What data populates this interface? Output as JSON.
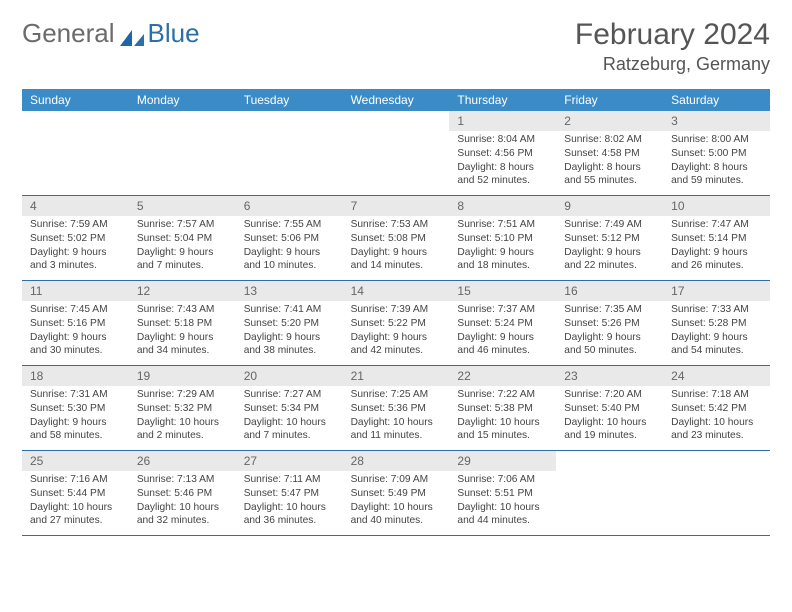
{
  "logo": {
    "part1": "General",
    "part2": "Blue"
  },
  "title": "February 2024",
  "location": "Ratzeburg, Germany",
  "colors": {
    "header_bg": "#3b8bc6",
    "header_text": "#ffffff",
    "daynum_bg": "#e9e9e9",
    "week_border": "#2f6fa8",
    "logo_gray": "#6b6b6b",
    "logo_blue": "#2f6fa8"
  },
  "day_headers": [
    "Sunday",
    "Monday",
    "Tuesday",
    "Wednesday",
    "Thursday",
    "Friday",
    "Saturday"
  ],
  "weeks": [
    [
      {
        "n": "",
        "sr": "",
        "ss": "",
        "dl1": "",
        "dl2": ""
      },
      {
        "n": "",
        "sr": "",
        "ss": "",
        "dl1": "",
        "dl2": ""
      },
      {
        "n": "",
        "sr": "",
        "ss": "",
        "dl1": "",
        "dl2": ""
      },
      {
        "n": "",
        "sr": "",
        "ss": "",
        "dl1": "",
        "dl2": ""
      },
      {
        "n": "1",
        "sr": "Sunrise: 8:04 AM",
        "ss": "Sunset: 4:56 PM",
        "dl1": "Daylight: 8 hours",
        "dl2": "and 52 minutes."
      },
      {
        "n": "2",
        "sr": "Sunrise: 8:02 AM",
        "ss": "Sunset: 4:58 PM",
        "dl1": "Daylight: 8 hours",
        "dl2": "and 55 minutes."
      },
      {
        "n": "3",
        "sr": "Sunrise: 8:00 AM",
        "ss": "Sunset: 5:00 PM",
        "dl1": "Daylight: 8 hours",
        "dl2": "and 59 minutes."
      }
    ],
    [
      {
        "n": "4",
        "sr": "Sunrise: 7:59 AM",
        "ss": "Sunset: 5:02 PM",
        "dl1": "Daylight: 9 hours",
        "dl2": "and 3 minutes."
      },
      {
        "n": "5",
        "sr": "Sunrise: 7:57 AM",
        "ss": "Sunset: 5:04 PM",
        "dl1": "Daylight: 9 hours",
        "dl2": "and 7 minutes."
      },
      {
        "n": "6",
        "sr": "Sunrise: 7:55 AM",
        "ss": "Sunset: 5:06 PM",
        "dl1": "Daylight: 9 hours",
        "dl2": "and 10 minutes."
      },
      {
        "n": "7",
        "sr": "Sunrise: 7:53 AM",
        "ss": "Sunset: 5:08 PM",
        "dl1": "Daylight: 9 hours",
        "dl2": "and 14 minutes."
      },
      {
        "n": "8",
        "sr": "Sunrise: 7:51 AM",
        "ss": "Sunset: 5:10 PM",
        "dl1": "Daylight: 9 hours",
        "dl2": "and 18 minutes."
      },
      {
        "n": "9",
        "sr": "Sunrise: 7:49 AM",
        "ss": "Sunset: 5:12 PM",
        "dl1": "Daylight: 9 hours",
        "dl2": "and 22 minutes."
      },
      {
        "n": "10",
        "sr": "Sunrise: 7:47 AM",
        "ss": "Sunset: 5:14 PM",
        "dl1": "Daylight: 9 hours",
        "dl2": "and 26 minutes."
      }
    ],
    [
      {
        "n": "11",
        "sr": "Sunrise: 7:45 AM",
        "ss": "Sunset: 5:16 PM",
        "dl1": "Daylight: 9 hours",
        "dl2": "and 30 minutes."
      },
      {
        "n": "12",
        "sr": "Sunrise: 7:43 AM",
        "ss": "Sunset: 5:18 PM",
        "dl1": "Daylight: 9 hours",
        "dl2": "and 34 minutes."
      },
      {
        "n": "13",
        "sr": "Sunrise: 7:41 AM",
        "ss": "Sunset: 5:20 PM",
        "dl1": "Daylight: 9 hours",
        "dl2": "and 38 minutes."
      },
      {
        "n": "14",
        "sr": "Sunrise: 7:39 AM",
        "ss": "Sunset: 5:22 PM",
        "dl1": "Daylight: 9 hours",
        "dl2": "and 42 minutes."
      },
      {
        "n": "15",
        "sr": "Sunrise: 7:37 AM",
        "ss": "Sunset: 5:24 PM",
        "dl1": "Daylight: 9 hours",
        "dl2": "and 46 minutes."
      },
      {
        "n": "16",
        "sr": "Sunrise: 7:35 AM",
        "ss": "Sunset: 5:26 PM",
        "dl1": "Daylight: 9 hours",
        "dl2": "and 50 minutes."
      },
      {
        "n": "17",
        "sr": "Sunrise: 7:33 AM",
        "ss": "Sunset: 5:28 PM",
        "dl1": "Daylight: 9 hours",
        "dl2": "and 54 minutes."
      }
    ],
    [
      {
        "n": "18",
        "sr": "Sunrise: 7:31 AM",
        "ss": "Sunset: 5:30 PM",
        "dl1": "Daylight: 9 hours",
        "dl2": "and 58 minutes."
      },
      {
        "n": "19",
        "sr": "Sunrise: 7:29 AM",
        "ss": "Sunset: 5:32 PM",
        "dl1": "Daylight: 10 hours",
        "dl2": "and 2 minutes."
      },
      {
        "n": "20",
        "sr": "Sunrise: 7:27 AM",
        "ss": "Sunset: 5:34 PM",
        "dl1": "Daylight: 10 hours",
        "dl2": "and 7 minutes."
      },
      {
        "n": "21",
        "sr": "Sunrise: 7:25 AM",
        "ss": "Sunset: 5:36 PM",
        "dl1": "Daylight: 10 hours",
        "dl2": "and 11 minutes."
      },
      {
        "n": "22",
        "sr": "Sunrise: 7:22 AM",
        "ss": "Sunset: 5:38 PM",
        "dl1": "Daylight: 10 hours",
        "dl2": "and 15 minutes."
      },
      {
        "n": "23",
        "sr": "Sunrise: 7:20 AM",
        "ss": "Sunset: 5:40 PM",
        "dl1": "Daylight: 10 hours",
        "dl2": "and 19 minutes."
      },
      {
        "n": "24",
        "sr": "Sunrise: 7:18 AM",
        "ss": "Sunset: 5:42 PM",
        "dl1": "Daylight: 10 hours",
        "dl2": "and 23 minutes."
      }
    ],
    [
      {
        "n": "25",
        "sr": "Sunrise: 7:16 AM",
        "ss": "Sunset: 5:44 PM",
        "dl1": "Daylight: 10 hours",
        "dl2": "and 27 minutes."
      },
      {
        "n": "26",
        "sr": "Sunrise: 7:13 AM",
        "ss": "Sunset: 5:46 PM",
        "dl1": "Daylight: 10 hours",
        "dl2": "and 32 minutes."
      },
      {
        "n": "27",
        "sr": "Sunrise: 7:11 AM",
        "ss": "Sunset: 5:47 PM",
        "dl1": "Daylight: 10 hours",
        "dl2": "and 36 minutes."
      },
      {
        "n": "28",
        "sr": "Sunrise: 7:09 AM",
        "ss": "Sunset: 5:49 PM",
        "dl1": "Daylight: 10 hours",
        "dl2": "and 40 minutes."
      },
      {
        "n": "29",
        "sr": "Sunrise: 7:06 AM",
        "ss": "Sunset: 5:51 PM",
        "dl1": "Daylight: 10 hours",
        "dl2": "and 44 minutes."
      },
      {
        "n": "",
        "sr": "",
        "ss": "",
        "dl1": "",
        "dl2": ""
      },
      {
        "n": "",
        "sr": "",
        "ss": "",
        "dl1": "",
        "dl2": ""
      }
    ]
  ]
}
